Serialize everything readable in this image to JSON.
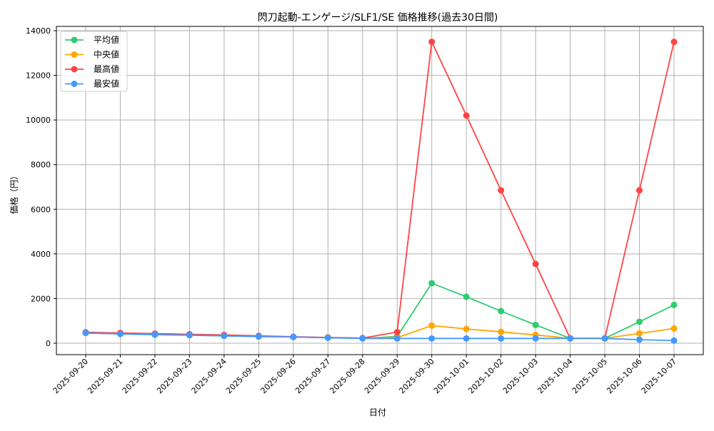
{
  "chart_data": {
    "type": "line",
    "title": "閃刀起動-エンゲージ/SLF1/SE 価格推移(過去30日間)",
    "xlabel": "日付",
    "ylabel": "価格（円）",
    "ylim": [
      -500,
      14500
    ],
    "yticks": [
      0,
      2000,
      4000,
      6000,
      8000,
      10000,
      12000,
      14000
    ],
    "grid": true,
    "legend_position": "top-left",
    "x": [
      "2025-09-20",
      "2025-09-21",
      "2025-09-22",
      "2025-09-23",
      "2025-09-24",
      "2025-09-25",
      "2025-09-26",
      "2025-09-27",
      "2025-09-28",
      "2025-09-29",
      "2025-09-30",
      "2025-10-01",
      "2025-10-02",
      "2025-10-03",
      "2025-10-04",
      "2025-10-05",
      "2025-10-06",
      "2025-10-07"
    ],
    "series": [
      {
        "name": "平均値",
        "color": "#2ecc71",
        "values": [
          460,
          420,
          390,
          360,
          330,
          300,
          280,
          250,
          220,
          300,
          2690,
          2080,
          1440,
          820,
          220,
          220,
          960,
          1715
        ]
      },
      {
        "name": "中央値",
        "color": "#ffa500",
        "values": [
          460,
          420,
          390,
          360,
          330,
          300,
          280,
          250,
          220,
          250,
          790,
          640,
          510,
          370,
          220,
          220,
          440,
          660
        ]
      },
      {
        "name": "最高値",
        "color": "#ff4444",
        "values": [
          490,
          460,
          430,
          400,
          370,
          330,
          290,
          260,
          230,
          500,
          13500,
          10200,
          6850,
          3550,
          220,
          220,
          6850,
          13500
        ]
      },
      {
        "name": "最安値",
        "color": "#4499ff",
        "values": [
          460,
          415,
          385,
          360,
          330,
          300,
          277,
          245,
          213,
          213,
          213,
          213,
          213,
          213,
          213,
          213,
          160,
          120
        ]
      }
    ]
  }
}
